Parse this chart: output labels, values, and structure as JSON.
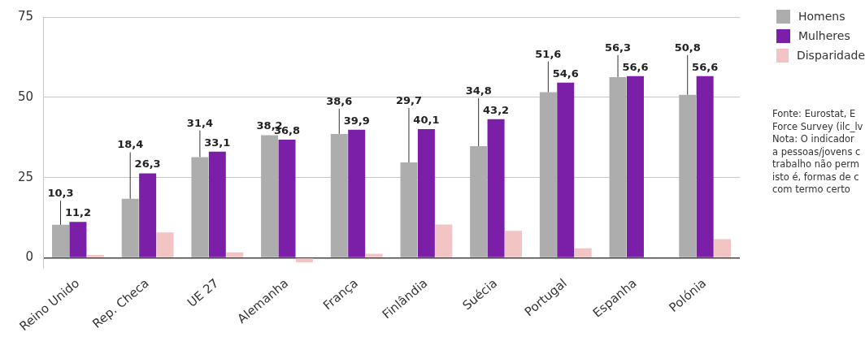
{
  "chart_data": {
    "type": "bar",
    "categories": [
      "Reino Unido",
      "Rep. Checa",
      "UE 27",
      "Alemanha",
      "França",
      "Finlândia",
      "Suécia",
      "Portugal",
      "Espanha",
      "Polónia"
    ],
    "series": [
      {
        "name": "Homens",
        "color": "#adadad",
        "values": [
          10.3,
          18.4,
          31.4,
          38.2,
          38.6,
          29.7,
          34.8,
          51.6,
          56.3,
          50.8
        ],
        "value_labels": [
          "10,3",
          "18,4",
          "31,4",
          "38,2",
          "38,6",
          "29,7",
          "34,8",
          "51,6",
          "56,3",
          "50,8"
        ]
      },
      {
        "name": "Mulheres",
        "color": "#7b1fa8",
        "values": [
          11.2,
          26.3,
          33.1,
          36.8,
          39.9,
          40.1,
          43.2,
          54.6,
          56.6,
          56.6
        ],
        "value_labels": [
          "11,2",
          "26,3",
          "33,1",
          "36,8",
          "39,9",
          "40,1",
          "43,2",
          "54,6",
          "56,6",
          "56,6"
        ]
      },
      {
        "name": "Disparidade",
        "color": "#f2c4c4",
        "values": [
          0.9,
          7.9,
          1.7,
          -1.4,
          1.3,
          10.4,
          8.4,
          3.0,
          null,
          5.8
        ]
      }
    ],
    "ylim": [
      -3,
      75
    ],
    "yticks": [
      0,
      25,
      50,
      75
    ],
    "grid": "y",
    "legend": "top right",
    "annotations": [
      "Fonte: Eurostat, E",
      "Force Survey (ilc_lv",
      "Nota: O indicador",
      "a pessoas/jovens c",
      "trabalho não perm",
      "isto é, formas de c",
      "com termo certo"
    ]
  }
}
